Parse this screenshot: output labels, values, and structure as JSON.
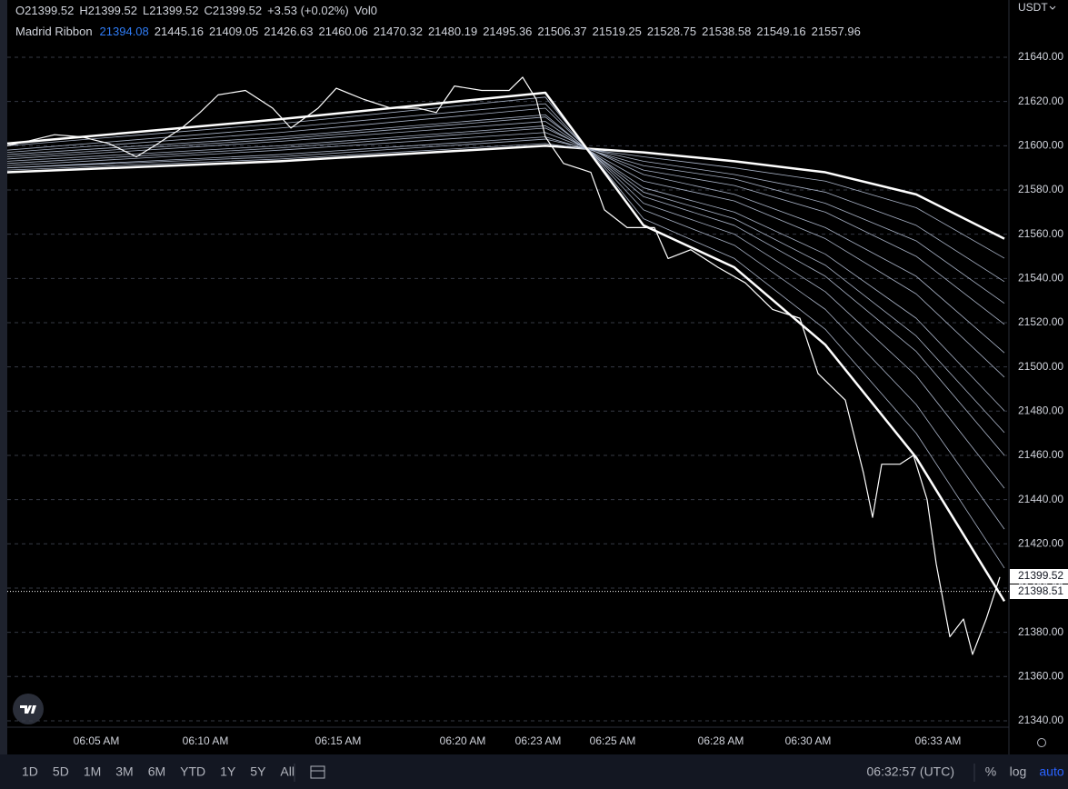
{
  "currency": "USDT",
  "toolbar": {
    "ranges": [
      "1D",
      "5D",
      "1M",
      "3M",
      "6M",
      "YTD",
      "1Y",
      "5Y",
      "All"
    ],
    "clock": "06:32:57 (UTC)",
    "percent": "%",
    "log": "log",
    "auto": "auto"
  },
  "chart_data": {
    "type": "line",
    "ohlc": {
      "labels": [
        "O",
        "H",
        "L",
        "C"
      ],
      "values": [
        21399.52,
        21399.52,
        21399.52,
        21399.52
      ]
    },
    "change": "+3.53 (+0.02%)",
    "volume_label": "Vol",
    "volume": 0,
    "indicator": "Madrid Ribbon",
    "xlim": [
      0,
      1102
    ],
    "xticks": [
      {
        "value": 98,
        "label": "06:05 AM"
      },
      {
        "value": 218,
        "label": "06:10 AM"
      },
      {
        "value": 364,
        "label": "06:15 AM"
      },
      {
        "value": 501,
        "label": "06:20 AM"
      },
      {
        "value": 584,
        "label": "06:23 AM"
      },
      {
        "value": 666,
        "label": "06:25 AM"
      },
      {
        "value": 785,
        "label": "06:28 AM"
      },
      {
        "value": 881,
        "label": "06:30 AM"
      },
      {
        "value": 1024,
        "label": "06:33 AM"
      }
    ],
    "ylim": [
      21337.1,
      21665.9
    ],
    "yticks": [
      {
        "value": 21340,
        "label": "21340.00"
      },
      {
        "value": 21360,
        "label": "21360.00"
      },
      {
        "value": 21380,
        "label": "21380.00"
      },
      {
        "value": 21400,
        "label": "21400.00"
      },
      {
        "value": 21420,
        "label": "21420.00"
      },
      {
        "value": 21440,
        "label": "21440.00"
      },
      {
        "value": 21460,
        "label": "21460.00"
      },
      {
        "value": 21480,
        "label": "21480.00"
      },
      {
        "value": 21500,
        "label": "21500.00"
      },
      {
        "value": 21520,
        "label": "21520.00"
      },
      {
        "value": 21540,
        "label": "21540.00"
      },
      {
        "value": 21560,
        "label": "21560.00"
      },
      {
        "value": 21580,
        "label": "21580.00"
      },
      {
        "value": 21600,
        "label": "21600.00"
      },
      {
        "value": 21620,
        "label": "21620.00"
      },
      {
        "value": 21640,
        "label": "21640.00"
      }
    ],
    "grid": true,
    "price_labels": [
      21399.52,
      21398.51
    ],
    "series": [
      {
        "color": "#ffffff",
        "x": [
          0,
          22,
          52,
          82,
          112,
          142,
          162,
          192,
          212,
          232,
          262,
          292,
          312,
          342,
          362,
          392,
          422,
          452,
          472,
          492,
          522,
          552,
          567,
          582,
          592,
          612,
          642,
          657,
          682,
          712,
          727,
          752,
          782,
          812,
          842,
          872,
          892,
          922,
          942,
          952,
          962,
          982,
          997,
          1012,
          1022,
          1037,
          1052,
          1062,
          1077,
          1092
        ],
        "values": [
          21600,
          21602,
          21605,
          21604,
          21601,
          21595,
          21600,
          21608,
          21615,
          21623,
          21625,
          21617,
          21608,
          21617,
          21626,
          21621,
          21617,
          21617,
          21615,
          21627,
          21625,
          21625,
          21631,
          21621,
          21604,
          21592,
          21588,
          21571,
          21563,
          21563,
          21549,
          21553,
          21545,
          21538,
          21526,
          21522,
          21497,
          21485,
          21452,
          21432,
          21456,
          21456,
          21460,
          21440,
          21411,
          21378,
          21386,
          21370,
          21386,
          21405
        ]
      },
      {
        "color": "#ffffff",
        "x": [
          0,
          300,
          592,
          700,
          800,
          900,
          1000,
          1097
        ],
        "values": [
          21601,
          21612,
          21624,
          21564,
          21545,
          21510,
          21459,
          21394.08
        ]
      },
      {
        "color": "#aab4c8",
        "x": [
          0,
          300,
          592,
          700,
          800,
          900,
          1000,
          1097
        ],
        "values": [
          21597,
          21606,
          21617,
          21574,
          21560,
          21534,
          21496,
          21445.16
        ]
      },
      {
        "color": "#aab4c8",
        "x": [
          0,
          300,
          592,
          700,
          800,
          900,
          1000,
          1097
        ],
        "values": [
          21600,
          21610,
          21622,
          21567,
          21549,
          21517,
          21470,
          21409.05
        ]
      },
      {
        "color": "#aab4c8",
        "x": [
          0,
          300,
          592,
          700,
          800,
          900,
          1000,
          1097
        ],
        "values": [
          21598,
          21608,
          21619,
          21571,
          21555,
          21526,
          21483,
          21426.63
        ]
      },
      {
        "color": "#aab4c8",
        "x": [
          0,
          300,
          592,
          700,
          800,
          900,
          1000,
          1097
        ],
        "values": [
          21596,
          21604,
          21614,
          21577,
          21564,
          21541,
          21507,
          21460.06
        ]
      },
      {
        "color": "#aab4c8",
        "x": [
          0,
          300,
          592,
          700,
          800,
          900,
          1000,
          1097
        ],
        "values": [
          21595,
          21603,
          21613,
          21579,
          21567,
          21546,
          21514,
          21470.32
        ]
      },
      {
        "color": "#aab4c8",
        "x": [
          0,
          300,
          592,
          700,
          800,
          900,
          1000,
          1097
        ],
        "values": [
          21594,
          21602,
          21611,
          21581,
          21570,
          21551,
          21522,
          21480.19
        ]
      },
      {
        "color": "#aab4c8",
        "x": [
          0,
          300,
          592,
          700,
          800,
          900,
          1000,
          1097
        ],
        "values": [
          21593,
          21600,
          21609,
          21584,
          21575,
          21558,
          21533,
          21495.36
        ]
      },
      {
        "color": "#aab4c8",
        "x": [
          0,
          300,
          592,
          700,
          800,
          900,
          1000,
          1097
        ],
        "values": [
          21592,
          21599,
          21608,
          21587,
          21578,
          21563,
          21541,
          21506.37
        ]
      },
      {
        "color": "#aab4c8",
        "x": [
          0,
          300,
          592,
          700,
          800,
          900,
          1000,
          1097
        ],
        "values": [
          21591,
          21598,
          21606,
          21589,
          21582,
          21570,
          21550,
          21519.25
        ]
      },
      {
        "color": "#aab4c8",
        "x": [
          0,
          300,
          592,
          700,
          800,
          900,
          1000,
          1097
        ],
        "values": [
          21590,
          21596,
          21604,
          21591,
          21585,
          21574,
          21557,
          21528.75
        ]
      },
      {
        "color": "#aab4c8",
        "x": [
          0,
          300,
          592,
          700,
          800,
          900,
          1000,
          1097
        ],
        "values": [
          21590,
          21595,
          21603,
          21593,
          21587,
          21579,
          21564,
          21538.58
        ]
      },
      {
        "color": "#aab4c8",
        "x": [
          0,
          300,
          592,
          700,
          800,
          900,
          1000,
          1097
        ],
        "values": [
          21589,
          21594,
          21601,
          21595,
          21590,
          21584,
          21572,
          21549.16
        ]
      },
      {
        "color": "#ffffff",
        "x": [
          0,
          300,
          592,
          700,
          800,
          900,
          1000,
          1097
        ],
        "values": [
          21588,
          21593,
          21600,
          21597,
          21593,
          21588,
          21578,
          21557.96
        ]
      }
    ]
  }
}
